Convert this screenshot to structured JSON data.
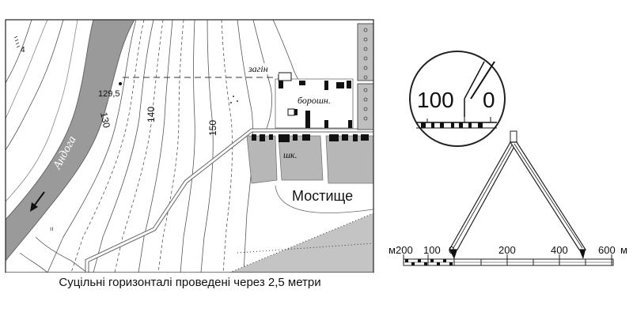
{
  "map": {
    "river_name": "Андога",
    "elevation_point": "129,5",
    "contour_labels": [
      "130",
      "140",
      "150"
    ],
    "corner_number": "4",
    "place_labels": {
      "zagin": "загін",
      "borosh": "борошн.",
      "shk": "шк."
    },
    "village_name": "Мостище",
    "caption": "Суцільні горизонталі проведені через 2,5 метри"
  },
  "scale": {
    "zoom_left": "100",
    "zoom_right": "0",
    "unit": "м",
    "labels": [
      "200",
      "100",
      "0",
      "200",
      "400",
      "600"
    ]
  }
}
